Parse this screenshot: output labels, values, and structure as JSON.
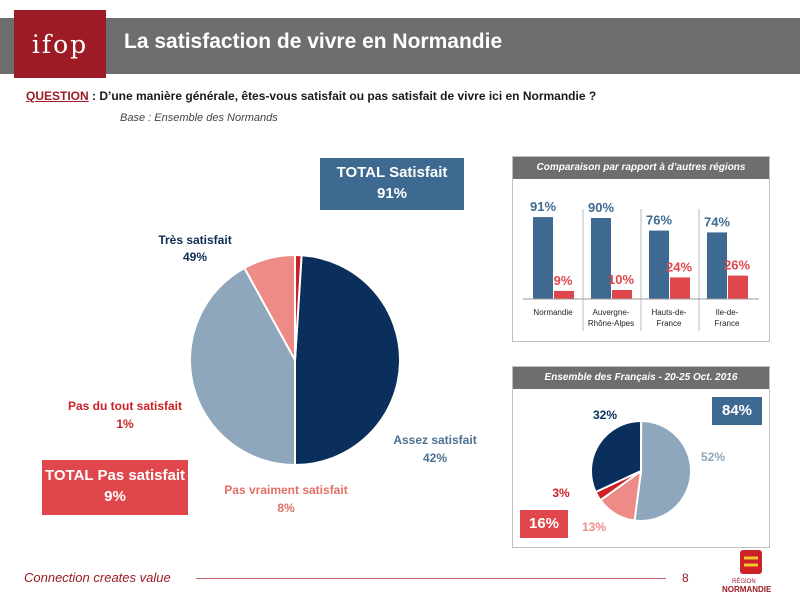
{
  "header": {
    "logo": "ifop",
    "title": "La satisfaction de vivre en Normandie"
  },
  "question": {
    "label": "QUESTION",
    "text": " : D’une manière générale, êtes-vous satisfait ou pas satisfait de vivre ici en Normandie ?",
    "base": "Base : Ensemble des Normands"
  },
  "totals": {
    "satisfied_label": "TOTAL Satisfait",
    "satisfied_value": "91%",
    "not_satisfied_label": "TOTAL Pas satisfait",
    "not_satisfied_value": "9%"
  },
  "colors": {
    "dark_blue": "#0b2f5c",
    "light_blue": "#8ea7bd",
    "salmon": "#ef8b86",
    "red": "#cc2127",
    "bar_blue": "#3e6a92",
    "bar_red": "#e0474c",
    "header_gray": "#6e6e6e",
    "brand_red": "#9c1b24"
  },
  "comparison": {
    "title": "Comparaison par rapport à d’autres régions"
  },
  "france": {
    "title": "Ensemble des Français - 20-25 Oct. 2016",
    "total_satisfied": "84%",
    "total_not_satisfied": "16%"
  },
  "footer": {
    "tagline": "Connection creates value",
    "page": "8",
    "region_small": "RÉGION",
    "region_name": "NORMANDIE"
  },
  "chart_data": [
    {
      "type": "pie",
      "labels": [
        "Très satisfait",
        "Assez satisfait",
        "Pas vraiment satisfait",
        "Pas du tout satisfait"
      ],
      "values": [
        49,
        42,
        8,
        1
      ],
      "value_labels": [
        "49%",
        "42%",
        "8%",
        "1%"
      ]
    },
    {
      "type": "bar",
      "title": "Comparaison par rapport à d’autres régions",
      "categories": [
        "Normandie",
        "Auvergne-\nRhône-Alpes",
        "Hauts-de-\nFrance",
        "Ile-de-\nFrance"
      ],
      "series": [
        {
          "values": [
            91,
            90,
            76,
            74
          ],
          "labels": [
            "91%",
            "90%",
            "76%",
            "74%"
          ]
        },
        {
          "values": [
            9,
            10,
            24,
            26
          ],
          "labels": [
            "9%",
            "10%",
            "24%",
            "26%"
          ]
        }
      ],
      "ylim": [
        0,
        100
      ]
    },
    {
      "type": "pie",
      "title": "Ensemble des Français - 20-25 Oct. 2016",
      "values": [
        32,
        52,
        13,
        3
      ],
      "value_labels": [
        "32%",
        "52%",
        "13%",
        "3%"
      ]
    }
  ]
}
